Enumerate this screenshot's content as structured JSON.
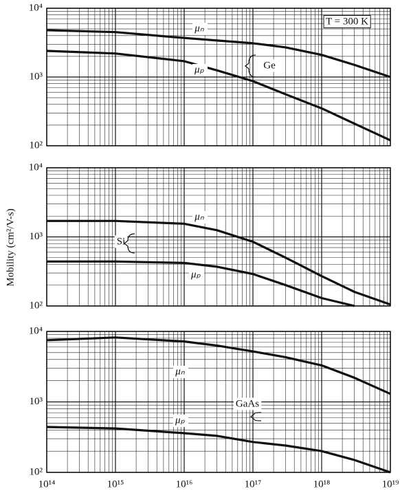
{
  "chart_data": [
    {
      "type": "line",
      "log_x": true,
      "log_y": true,
      "grid": true,
      "x": [
        100000000000000.0,
        1000000000000000.0,
        1e+16,
        3e+16,
        1e+17,
        3e+17,
        1e+18,
        3e+18,
        1e+19
      ],
      "xlim": [
        100000000000000.0,
        1e+19
      ],
      "ylim": [
        100,
        10000
      ],
      "yticks": [
        {
          "value": 100,
          "label": "10²"
        },
        {
          "value": 1000,
          "label": "10³"
        },
        {
          "value": 10000,
          "label": "10⁴"
        }
      ],
      "annotations": [
        "T = 300 K",
        "Ge"
      ],
      "series": [
        {
          "name": "μₙ",
          "color": "#111111",
          "values": [
            4800,
            4500,
            3700,
            3400,
            3100,
            2700,
            2100,
            1500,
            1000
          ]
        },
        {
          "name": "μₚ",
          "color": "#111111",
          "values": [
            2400,
            2200,
            1700,
            1250,
            870,
            560,
            350,
            210,
            120
          ]
        }
      ]
    },
    {
      "type": "line",
      "log_x": true,
      "log_y": true,
      "grid": true,
      "ylabel": "Mobility (cm²/V-s)",
      "x": [
        100000000000000.0,
        1000000000000000.0,
        1e+16,
        3e+16,
        1e+17,
        3e+17,
        1e+18,
        3e+18,
        1e+19
      ],
      "xlim": [
        100000000000000.0,
        1e+19
      ],
      "ylim": [
        100,
        10000
      ],
      "yticks": [
        {
          "value": 100,
          "label": "10²"
        },
        {
          "value": 1000,
          "label": "10³"
        },
        {
          "value": 10000,
          "label": "10⁴"
        }
      ],
      "annotations": [
        "Si"
      ],
      "series": [
        {
          "name": "μₙ",
          "color": "#111111",
          "values": [
            1700,
            1700,
            1550,
            1250,
            850,
            500,
            270,
            160,
            105
          ]
        },
        {
          "name": "μₚ",
          "color": "#111111",
          "values": [
            440,
            440,
            420,
            370,
            290,
            200,
            130,
            100,
            null
          ]
        }
      ]
    },
    {
      "type": "line",
      "log_x": true,
      "log_y": true,
      "grid": true,
      "x": [
        100000000000000.0,
        1000000000000000.0,
        1e+16,
        3e+16,
        1e+17,
        3e+17,
        1e+18,
        3e+18,
        1e+19
      ],
      "xlim": [
        100000000000000.0,
        1e+19
      ],
      "ylim": [
        100,
        10000
      ],
      "xticks": [
        {
          "value": 100000000000000.0,
          "label": "10¹⁴"
        },
        {
          "value": 1000000000000000.0,
          "label": "10¹⁵"
        },
        {
          "value": 1e+16,
          "label": "10¹⁶"
        },
        {
          "value": 1e+17,
          "label": "10¹⁷"
        },
        {
          "value": 1e+18,
          "label": "10¹⁸"
        },
        {
          "value": 1e+19,
          "label": "10¹⁹"
        }
      ],
      "yticks": [
        {
          "value": 100,
          "label": "10²"
        },
        {
          "value": 1000,
          "label": "10³"
        },
        {
          "value": 10000,
          "label": "10⁴"
        }
      ],
      "annotations": [
        "GaAs"
      ],
      "series": [
        {
          "name": "μₙ",
          "color": "#111111",
          "values": [
            7500,
            8200,
            7200,
            6300,
            5200,
            4300,
            3300,
            2200,
            1300
          ]
        },
        {
          "name": "μₚ",
          "color": "#111111",
          "values": [
            440,
            420,
            360,
            330,
            270,
            240,
            200,
            150,
            100
          ]
        }
      ]
    }
  ]
}
